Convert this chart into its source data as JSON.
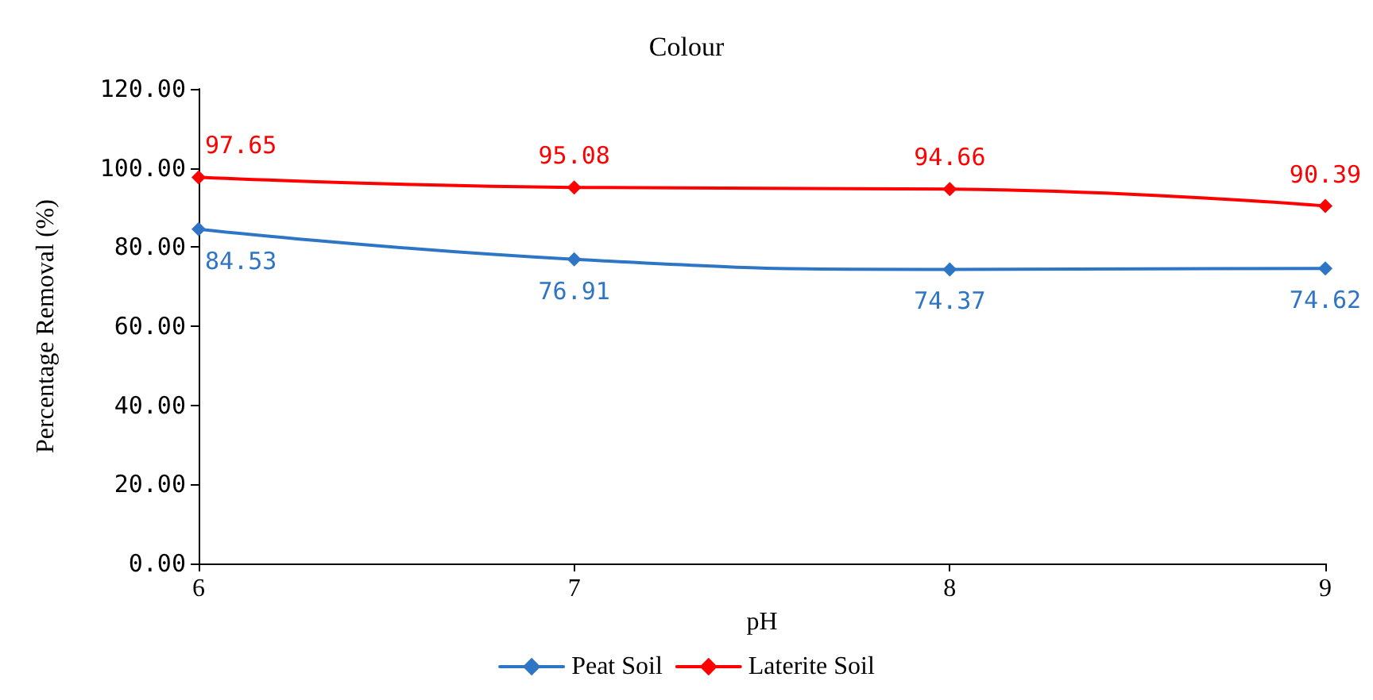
{
  "chart_data": {
    "type": "line",
    "title": "Colour",
    "xlabel": "pH",
    "ylabel": "Percentage Removal (%)",
    "x": [
      6,
      7,
      8,
      9
    ],
    "xlim": [
      6,
      9
    ],
    "xticks": [
      6,
      7,
      8,
      9
    ],
    "ylim": [
      0,
      120
    ],
    "yticks": [
      {
        "value": 0,
        "label": "0.00"
      },
      {
        "value": 20,
        "label": "20.00"
      },
      {
        "value": 40,
        "label": "40.00"
      },
      {
        "value": 60,
        "label": "60.00"
      },
      {
        "value": 80,
        "label": "80.00"
      },
      {
        "value": 100,
        "label": "100.00"
      },
      {
        "value": 120,
        "label": "120.00"
      }
    ],
    "series": [
      {
        "name": "Peat Soil",
        "color": "#2e75c6",
        "values": [
          84.53,
          76.91,
          74.37,
          74.62
        ]
      },
      {
        "name": "Laterite Soil",
        "color": "#ff0000",
        "values": [
          97.65,
          95.08,
          94.66,
          90.39
        ]
      }
    ],
    "data_labels": true,
    "grid": false,
    "legend": "bottom",
    "marker": "diamond",
    "line_style": "solid"
  }
}
